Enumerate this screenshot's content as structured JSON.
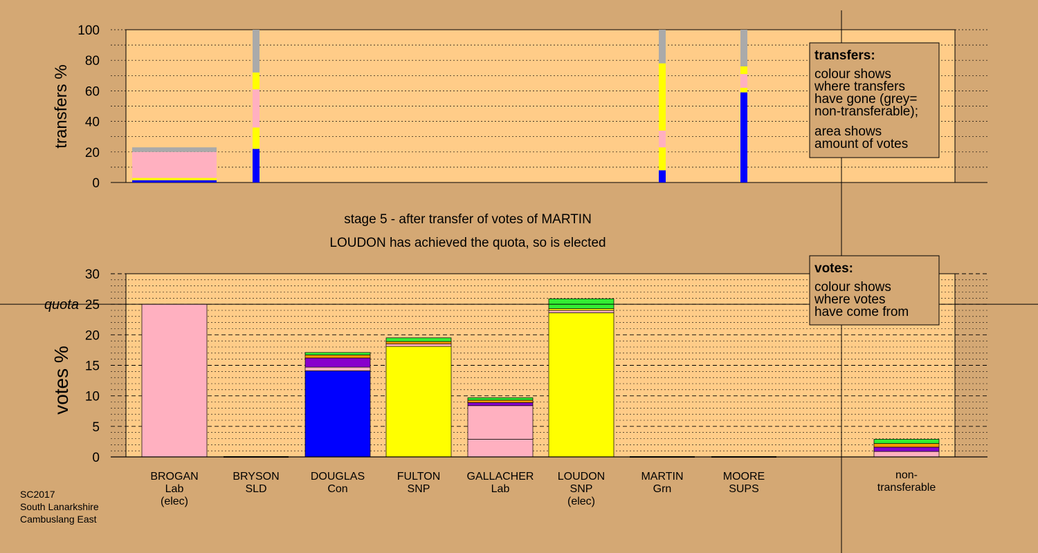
{
  "colors": {
    "page_bg": "#d4a874",
    "plot_bg": "#ffcc88",
    "lab": "#ffb0c0",
    "snp": "#ffff00",
    "con": "#0000ff",
    "grn": "#33ee33",
    "sups": "#8800cc",
    "sld": "#ff9900",
    "nontransferable": "#aaaaaa"
  },
  "chart_data": {
    "type": "bar",
    "stage_title": "stage 5 - after transfer of votes of MARTIN",
    "stage_subtitle": "LOUDON has achieved the quota, so is elected",
    "footer": [
      "SC2017",
      "South Lanarkshire",
      "Cambuslang East"
    ],
    "candidates": [
      {
        "name": "BROGAN",
        "party": "Lab",
        "status": "(elec)"
      },
      {
        "name": "BRYSON",
        "party": "SLD",
        "status": ""
      },
      {
        "name": "DOUGLAS",
        "party": "Con",
        "status": ""
      },
      {
        "name": "FULTON",
        "party": "SNP",
        "status": ""
      },
      {
        "name": "GALLACHER",
        "party": "Lab",
        "status": ""
      },
      {
        "name": "LOUDON",
        "party": "SNP",
        "status": "(elec)"
      },
      {
        "name": "MARTIN",
        "party": "Grn",
        "status": ""
      },
      {
        "name": "MOORE",
        "party": "SUPS",
        "status": ""
      }
    ],
    "nontransferable_label": [
      "non-",
      "transferable"
    ],
    "transfers": {
      "ylabel": "transfers %",
      "ylim": [
        0,
        100
      ],
      "yticks": [
        0,
        20,
        40,
        60,
        80,
        100
      ],
      "legend_title": "transfers:",
      "legend_lines": [
        "colour shows",
        "where transfers",
        "have gone (grey=",
        "non-transferable);",
        "area shows",
        "amount of votes"
      ],
      "bars": [
        {
          "candidate": "BROGAN",
          "segments": [
            {
              "party": "con",
              "value": 1.5
            },
            {
              "party": "snp",
              "value": 1.5
            },
            {
              "party": "lab",
              "value": 17
            },
            {
              "party": "nontransferable",
              "value": 3
            }
          ]
        },
        {
          "candidate": "BRYSON",
          "segments": [
            {
              "party": "con",
              "value": 22
            },
            {
              "party": "snp",
              "value": 14
            },
            {
              "party": "lab",
              "value": 25
            },
            {
              "party": "snp",
              "value": 11
            },
            {
              "party": "nontransferable",
              "value": 28
            }
          ]
        },
        {
          "candidate": "MARTIN",
          "segments": [
            {
              "party": "con",
              "value": 8
            },
            {
              "party": "snp",
              "value": 15
            },
            {
              "party": "lab",
              "value": 11
            },
            {
              "party": "snp",
              "value": 44
            },
            {
              "party": "nontransferable",
              "value": 22
            }
          ]
        },
        {
          "candidate": "MOORE",
          "segments": [
            {
              "party": "con",
              "value": 59
            },
            {
              "party": "snp",
              "value": 3
            },
            {
              "party": "lab",
              "value": 9
            },
            {
              "party": "snp",
              "value": 5
            },
            {
              "party": "nontransferable",
              "value": 24
            }
          ]
        }
      ]
    },
    "votes": {
      "ylabel": "votes %",
      "ylim": [
        0,
        30
      ],
      "yticks": [
        0,
        5,
        10,
        15,
        20,
        25,
        30
      ],
      "quota_label": "quota",
      "quota": 25,
      "legend_title": "votes:",
      "legend_lines": [
        "colour shows",
        "where votes",
        "have come from"
      ],
      "bars": [
        {
          "candidate": "BROGAN",
          "segments": [
            {
              "party": "lab",
              "value": 25
            }
          ]
        },
        {
          "candidate": "BRYSON",
          "segments": []
        },
        {
          "candidate": "DOUGLAS",
          "segments": [
            {
              "party": "con",
              "value": 14.1
            },
            {
              "party": "lab",
              "value": 0.6
            },
            {
              "party": "sups",
              "value": 1.5
            },
            {
              "party": "sld",
              "value": 0.5
            },
            {
              "party": "grn",
              "value": 0.4
            }
          ]
        },
        {
          "candidate": "FULTON",
          "segments": [
            {
              "party": "snp",
              "value": 18.1
            },
            {
              "party": "lab",
              "value": 0.4
            },
            {
              "party": "sld",
              "value": 0.4
            },
            {
              "party": "grn",
              "value": 0.6
            }
          ]
        },
        {
          "candidate": "GALLACHER",
          "segments": [
            {
              "party": "lab",
              "value": 2.9
            },
            {
              "party": "lab",
              "value": 5.5
            },
            {
              "party": "sups",
              "value": 0.5
            },
            {
              "party": "sld",
              "value": 0.4
            },
            {
              "party": "grn",
              "value": 0.4
            }
          ]
        },
        {
          "candidate": "LOUDON",
          "segments": [
            {
              "party": "snp",
              "value": 23.6
            },
            {
              "party": "lab",
              "value": 0.4
            },
            {
              "party": "snp",
              "value": 0.3
            },
            {
              "party": "grn",
              "value": 1.6
            }
          ]
        },
        {
          "candidate": "MARTIN",
          "segments": []
        },
        {
          "candidate": "MOORE",
          "segments": []
        }
      ],
      "nontransferable": [
        {
          "party": "lab",
          "value": 0.9
        },
        {
          "party": "sups",
          "value": 0.7
        },
        {
          "party": "sld",
          "value": 0.6
        },
        {
          "party": "grn",
          "value": 0.7
        }
      ]
    }
  }
}
